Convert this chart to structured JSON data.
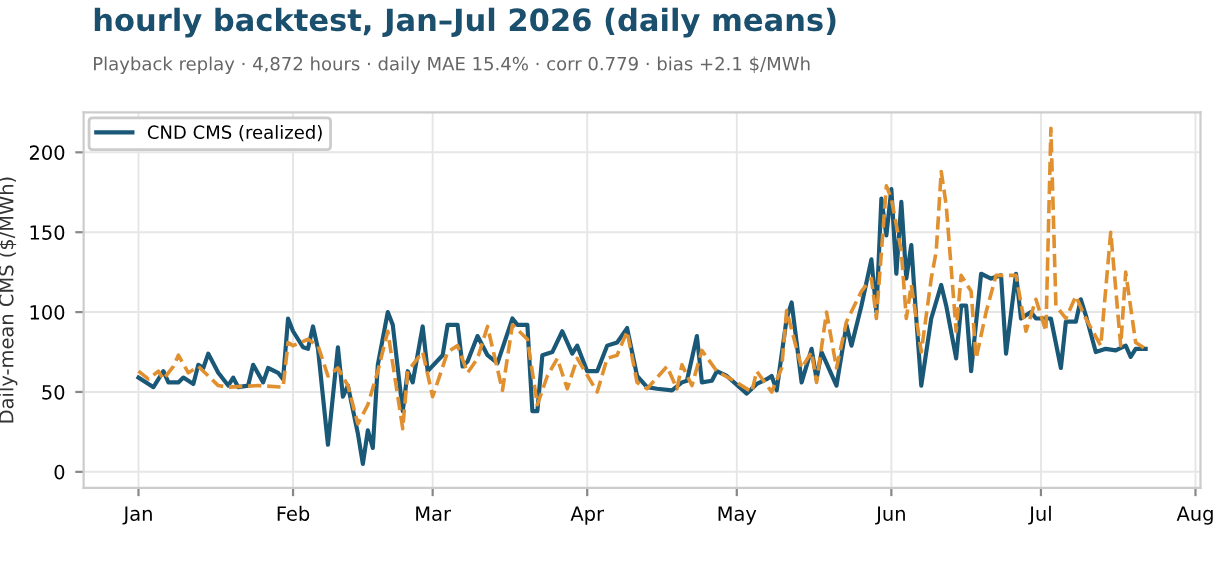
{
  "chart_data": {
    "type": "line",
    "title": "hourly backtest, Jan–Jul 2026 (daily means)",
    "subtitle": "Playback replay · 4,872 hours · daily MAE 15.4% · corr 0.779 · bias +2.1 $/MWh",
    "ylabel": "Daily-mean CMS ($/MWh)",
    "xlim": [
      "2025-12-21",
      "2026-08-02"
    ],
    "ylim": [
      -10,
      225
    ],
    "yticks": [
      0,
      50,
      100,
      150,
      200
    ],
    "xticks": [
      {
        "value": "2026-01-01",
        "label": "Jan"
      },
      {
        "value": "2026-02-01",
        "label": "Feb"
      },
      {
        "value": "2026-03-01",
        "label": "Mar"
      },
      {
        "value": "2026-04-01",
        "label": "Apr"
      },
      {
        "value": "2026-05-01",
        "label": "May"
      },
      {
        "value": "2026-06-01",
        "label": "Jun"
      },
      {
        "value": "2026-07-01",
        "label": "Jul"
      },
      {
        "value": "2026-08-01",
        "label": "Aug"
      }
    ],
    "grid": true,
    "legend": "top left",
    "marker": "none",
    "series": [
      {
        "name": "CND CMS (realized)",
        "color": "#1a5878",
        "line_style": "solid",
        "x": [
          "2026-01-01",
          "2026-01-03",
          "2026-01-04",
          "2026-01-06",
          "2026-01-07",
          "2026-01-09",
          "2026-01-10",
          "2026-01-12",
          "2026-01-13",
          "2026-01-14",
          "2026-01-15",
          "2026-01-17",
          "2026-01-19",
          "2026-01-20",
          "2026-01-21",
          "2026-01-23",
          "2026-01-24",
          "2026-01-26",
          "2026-01-27",
          "2026-01-29",
          "2026-01-30",
          "2026-01-31",
          "2026-02-01",
          "2026-02-03",
          "2026-02-04",
          "2026-02-05",
          "2026-02-06",
          "2026-02-08",
          "2026-02-10",
          "2026-02-11",
          "2026-02-12",
          "2026-02-14",
          "2026-02-15",
          "2026-02-16",
          "2026-02-17",
          "2026-02-18",
          "2026-02-20",
          "2026-02-21",
          "2026-02-23",
          "2026-02-24",
          "2026-02-25",
          "2026-02-27",
          "2026-02-28",
          "2026-03-03",
          "2026-03-04",
          "2026-03-06",
          "2026-03-07",
          "2026-03-08",
          "2026-03-10",
          "2026-03-12",
          "2026-03-14",
          "2026-03-17",
          "2026-03-18",
          "2026-03-20",
          "2026-03-21",
          "2026-03-22",
          "2026-03-23",
          "2026-03-25",
          "2026-03-27",
          "2026-03-29",
          "2026-03-30",
          "2026-04-01",
          "2026-04-03",
          "2026-04-05",
          "2026-04-07",
          "2026-04-09",
          "2026-04-11",
          "2026-04-13",
          "2026-04-15",
          "2026-04-18",
          "2026-04-20",
          "2026-04-21",
          "2026-04-23",
          "2026-04-24",
          "2026-04-26",
          "2026-04-27",
          "2026-04-29",
          "2026-05-03",
          "2026-05-05",
          "2026-05-07",
          "2026-05-08",
          "2026-05-09",
          "2026-05-11",
          "2026-05-12",
          "2026-05-14",
          "2026-05-16",
          "2026-05-17",
          "2026-05-18",
          "2026-05-21",
          "2026-05-23",
          "2026-05-24",
          "2026-05-26",
          "2026-05-28",
          "2026-05-29",
          "2026-05-30",
          "2026-05-31",
          "2026-06-01",
          "2026-06-02",
          "2026-06-03",
          "2026-06-04",
          "2026-06-05",
          "2026-06-06",
          "2026-06-07",
          "2026-06-09",
          "2026-06-11",
          "2026-06-12",
          "2026-06-14",
          "2026-06-15",
          "2026-06-16",
          "2026-06-17",
          "2026-06-19",
          "2026-06-21",
          "2026-06-23",
          "2026-06-24",
          "2026-06-26",
          "2026-06-27",
          "2026-06-29",
          "2026-06-30",
          "2026-07-03",
          "2026-07-05",
          "2026-07-06",
          "2026-07-08",
          "2026-07-09",
          "2026-07-10",
          "2026-07-12",
          "2026-07-14",
          "2026-07-16",
          "2026-07-18",
          "2026-07-19",
          "2026-07-20",
          "2026-07-22"
        ],
        "values": [
          59,
          55,
          53,
          63,
          56,
          56,
          59,
          55,
          67,
          65,
          74,
          62,
          54,
          59,
          53,
          54,
          67,
          56,
          65,
          62,
          58,
          96,
          88,
          78,
          77,
          91,
          77,
          17,
          78,
          47,
          54,
          24,
          5,
          26,
          15,
          67,
          100,
          92,
          38,
          63,
          56,
          91,
          63,
          73,
          92,
          92,
          66,
          69,
          85,
          73,
          68,
          96,
          92,
          92,
          38,
          38,
          73,
          75,
          88,
          74,
          79,
          63,
          63,
          79,
          81,
          90,
          60,
          53,
          52,
          51,
          56,
          57,
          85,
          56,
          57,
          63,
          60,
          49,
          55,
          58,
          60,
          51,
          96,
          106,
          56,
          77,
          58,
          75,
          54,
          92,
          79,
          104,
          133,
          100,
          171,
          148,
          177,
          124,
          169,
          121,
          142,
          96,
          54,
          96,
          117,
          104,
          71,
          104,
          104,
          63,
          124,
          121,
          123,
          74,
          124,
          96,
          100,
          96,
          96,
          65,
          94,
          94,
          108,
          98,
          75,
          77,
          76,
          79,
          72,
          77,
          77
        ]
      },
      {
        "color": "#e0902f",
        "line_style": "dashed",
        "x": [
          "2026-01-01",
          "2026-01-03",
          "2026-01-05",
          "2026-01-06",
          "2026-01-08",
          "2026-01-09",
          "2026-01-11",
          "2026-01-13",
          "2026-01-17",
          "2026-01-19",
          "2026-01-25",
          "2026-01-30",
          "2026-01-31",
          "2026-02-01",
          "2026-02-04",
          "2026-02-06",
          "2026-02-08",
          "2026-02-10",
          "2026-02-12",
          "2026-02-14",
          "2026-02-16",
          "2026-02-18",
          "2026-02-20",
          "2026-02-23",
          "2026-02-24",
          "2026-02-27",
          "2026-03-01",
          "2026-03-04",
          "2026-03-06",
          "2026-03-08",
          "2026-03-10",
          "2026-03-12",
          "2026-03-15",
          "2026-03-17",
          "2026-03-20",
          "2026-03-22",
          "2026-03-24",
          "2026-03-26",
          "2026-03-28",
          "2026-03-30",
          "2026-04-03",
          "2026-04-05",
          "2026-04-07",
          "2026-04-09",
          "2026-04-11",
          "2026-04-13",
          "2026-04-17",
          "2026-04-19",
          "2026-04-20",
          "2026-04-22",
          "2026-04-24",
          "2026-04-27",
          "2026-05-01",
          "2026-05-04",
          "2026-05-05",
          "2026-05-08",
          "2026-05-10",
          "2026-05-11",
          "2026-05-14",
          "2026-05-16",
          "2026-05-17",
          "2026-05-19",
          "2026-05-21",
          "2026-05-23",
          "2026-05-26",
          "2026-05-28",
          "2026-05-29",
          "2026-05-31",
          "2026-06-01",
          "2026-06-03",
          "2026-06-04",
          "2026-06-05",
          "2026-06-07",
          "2026-06-09",
          "2026-06-10",
          "2026-06-11",
          "2026-06-12",
          "2026-06-14",
          "2026-06-15",
          "2026-06-17",
          "2026-06-18",
          "2026-06-20",
          "2026-06-22",
          "2026-06-26",
          "2026-06-28",
          "2026-06-30",
          "2026-07-02",
          "2026-07-03",
          "2026-07-04",
          "2026-07-06",
          "2026-07-08",
          "2026-07-10",
          "2026-07-13",
          "2026-07-15",
          "2026-07-17",
          "2026-07-18",
          "2026-07-20",
          "2026-07-22"
        ],
        "values": [
          63,
          58,
          63,
          58,
          66,
          73,
          62,
          66,
          54,
          53,
          54,
          53,
          81,
          79,
          83,
          79,
          60,
          65,
          54,
          30,
          42,
          63,
          88,
          27,
          63,
          75,
          47,
          75,
          79,
          62,
          71,
          91,
          51,
          92,
          83,
          42,
          60,
          71,
          52,
          71,
          50,
          71,
          73,
          88,
          56,
          52,
          66,
          52,
          67,
          54,
          76,
          63,
          56,
          50,
          63,
          50,
          65,
          101,
          65,
          75,
          56,
          100,
          65,
          94,
          113,
          121,
          96,
          179,
          171,
          138,
          96,
          117,
          75,
          121,
          138,
          188,
          167,
          88,
          123,
          113,
          71,
          100,
          123,
          123,
          88,
          108,
          88,
          215,
          104,
          96,
          110,
          96,
          79,
          150,
          79,
          125,
          81,
          77
        ]
      }
    ]
  }
}
